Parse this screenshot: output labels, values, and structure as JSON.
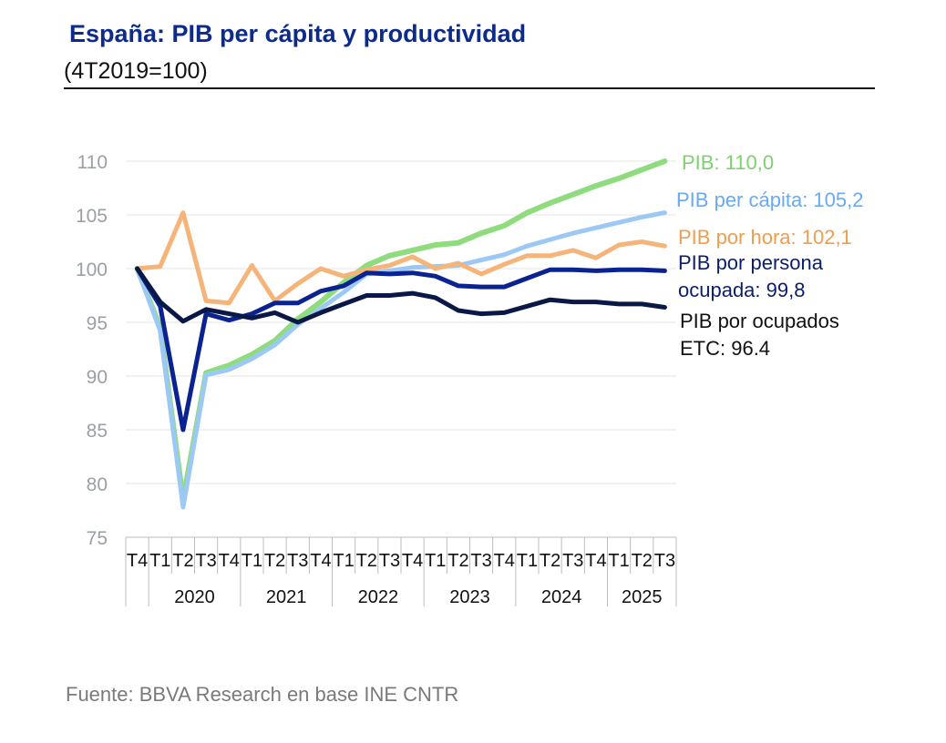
{
  "header": {
    "title": "España: PIB per cápita y productividad",
    "subtitle": "(4T2019=100)"
  },
  "footer": {
    "source": "Fuente: BBVA Research en base INE CNTR"
  },
  "chart_data": {
    "type": "line",
    "title": "España: PIB per cápita y productividad",
    "subtitle": "(4T2019=100)",
    "quarters": [
      "T4",
      "T1",
      "T2",
      "T3",
      "T4",
      "T1",
      "T2",
      "T3",
      "T4",
      "T1",
      "T2",
      "T3",
      "T4",
      "T1",
      "T2",
      "T3",
      "T4",
      "T1",
      "T2",
      "T3",
      "T4",
      "T1",
      "T2",
      "T3"
    ],
    "year_groups": [
      {
        "label": "",
        "count": 1
      },
      {
        "label": "2020",
        "count": 4
      },
      {
        "label": "2021",
        "count": 4
      },
      {
        "label": "2022",
        "count": 4
      },
      {
        "label": "2023",
        "count": 4
      },
      {
        "label": "2024",
        "count": 4
      },
      {
        "label": "2025",
        "count": 3
      }
    ],
    "ylim": [
      75,
      110
    ],
    "yticks": [
      75,
      80,
      85,
      90,
      95,
      100,
      105,
      110
    ],
    "grid": true,
    "series": [
      {
        "name": "PIB: 110,0",
        "label_lines": [
          "PIB: 110,0"
        ],
        "color": "#8fdc7f",
        "text_color": "#7fd070",
        "values": [
          100,
          94.5,
          78.5,
          90.3,
          91.0,
          92.0,
          93.3,
          95.3,
          96.9,
          98.7,
          100.3,
          101.2,
          101.7,
          102.2,
          102.4,
          103.3,
          104.0,
          105.2,
          106.1,
          106.9,
          107.7,
          108.4,
          109.2,
          110.0
        ]
      },
      {
        "name": "PIB per cápita: 105,2",
        "label_lines": [
          "PIB per cápita: 105,2"
        ],
        "color": "#9cc8f5",
        "text_color": "#6aaaf0",
        "values": [
          100,
          94.2,
          77.8,
          90.1,
          90.6,
          91.6,
          92.9,
          94.8,
          96.3,
          97.8,
          99.5,
          99.8,
          100.1,
          100.2,
          100.3,
          100.8,
          101.3,
          102.1,
          102.7,
          103.3,
          103.8,
          104.3,
          104.8,
          105.2
        ]
      },
      {
        "name": "PIB por hora: 102,1",
        "label_lines": [
          "PIB por hora: 102,1"
        ],
        "color": "#f5b57a",
        "text_color": "#ef9d4f",
        "values": [
          100,
          100.2,
          105.2,
          97.0,
          96.8,
          100.3,
          97.0,
          98.6,
          100.0,
          99.3,
          99.9,
          100.3,
          101.1,
          100.0,
          100.5,
          99.5,
          100.4,
          101.2,
          101.2,
          101.7,
          101.0,
          102.2,
          102.5,
          102.1
        ]
      },
      {
        "name": "PIB por persona ocupada: 99,8",
        "label_lines": [
          "PIB por persona",
          "ocupada: 99,8"
        ],
        "color": "#0a2390",
        "text_color": "#0a1e6e",
        "values": [
          100,
          96.5,
          85.0,
          95.8,
          95.2,
          95.8,
          96.8,
          96.8,
          97.9,
          98.4,
          99.6,
          99.5,
          99.6,
          99.3,
          98.4,
          98.3,
          98.3,
          99.1,
          99.9,
          99.9,
          99.8,
          99.9,
          99.9,
          99.8
        ]
      },
      {
        "name": "PIB por ocupados ETC: 96.4",
        "label_lines": [
          "PIB por ocupados",
          "ETC: 96.4"
        ],
        "color": "#0a1848",
        "text_color": "#111111",
        "values": [
          100,
          96.9,
          95.1,
          96.2,
          95.8,
          95.4,
          95.9,
          95.0,
          95.9,
          96.7,
          97.5,
          97.5,
          97.7,
          97.3,
          96.1,
          95.8,
          95.9,
          96.5,
          97.1,
          96.9,
          96.9,
          96.7,
          96.7,
          96.4
        ]
      }
    ]
  }
}
